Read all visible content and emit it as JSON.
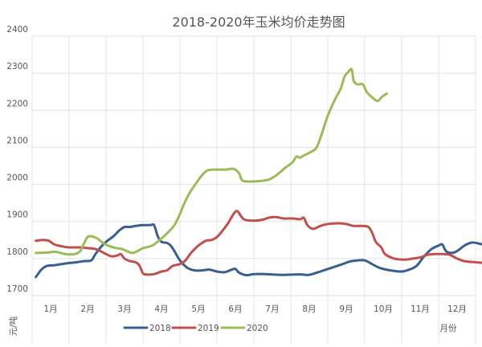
{
  "chart_data": {
    "type": "line",
    "title": "2018-2020年玉米均价走势图",
    "xlabel": "月份",
    "ylabel": "元/吨",
    "ylim": [
      1700,
      2400
    ],
    "yticks": [
      1700,
      1800,
      1900,
      2000,
      2100,
      2200,
      2300,
      2400
    ],
    "xlim": [
      0.5,
      12.5
    ],
    "categories": [
      "1月",
      "2月",
      "3月",
      "4月",
      "5月",
      "6月",
      "7月",
      "8月",
      "9月",
      "10月",
      "11月",
      "12月"
    ],
    "legend_position": "bottom-left",
    "grid": true,
    "series": [
      {
        "name": "2018",
        "color": "#3A5F8F",
        "points": [
          [
            0.6,
            1750
          ],
          [
            0.75,
            1770
          ],
          [
            0.9,
            1780
          ],
          [
            1.1,
            1782
          ],
          [
            1.3,
            1785
          ],
          [
            1.5,
            1788
          ],
          [
            1.7,
            1790
          ],
          [
            1.9,
            1793
          ],
          [
            2.1,
            1795
          ],
          [
            2.2,
            1810
          ],
          [
            2.35,
            1830
          ],
          [
            2.5,
            1845
          ],
          [
            2.7,
            1860
          ],
          [
            2.85,
            1875
          ],
          [
            3.0,
            1885
          ],
          [
            3.15,
            1885
          ],
          [
            3.3,
            1888
          ],
          [
            3.5,
            1890
          ],
          [
            3.7,
            1890
          ],
          [
            3.8,
            1890
          ],
          [
            3.9,
            1860
          ],
          [
            4.0,
            1845
          ],
          [
            4.15,
            1842
          ],
          [
            4.25,
            1835
          ],
          [
            4.35,
            1820
          ],
          [
            4.5,
            1795
          ],
          [
            4.7,
            1775
          ],
          [
            4.9,
            1768
          ],
          [
            5.1,
            1768
          ],
          [
            5.3,
            1770
          ],
          [
            5.5,
            1765
          ],
          [
            5.7,
            1763
          ],
          [
            5.9,
            1770
          ],
          [
            6.0,
            1772
          ],
          [
            6.1,
            1762
          ],
          [
            6.3,
            1755
          ],
          [
            6.5,
            1758
          ],
          [
            6.8,
            1758
          ],
          [
            7.0,
            1757
          ],
          [
            7.3,
            1756
          ],
          [
            7.6,
            1757
          ],
          [
            7.8,
            1757
          ],
          [
            8.0,
            1756
          ],
          [
            8.3,
            1765
          ],
          [
            8.6,
            1775
          ],
          [
            8.9,
            1785
          ],
          [
            9.1,
            1792
          ],
          [
            9.3,
            1795
          ],
          [
            9.5,
            1795
          ],
          [
            9.7,
            1785
          ],
          [
            9.9,
            1775
          ],
          [
            10.2,
            1768
          ],
          [
            10.5,
            1765
          ],
          [
            10.7,
            1770
          ],
          [
            10.9,
            1780
          ],
          [
            11.1,
            1805
          ],
          [
            11.3,
            1825
          ],
          [
            11.5,
            1835
          ],
          [
            11.6,
            1838
          ],
          [
            11.7,
            1820
          ],
          [
            11.85,
            1815
          ],
          [
            12.0,
            1820
          ],
          [
            12.2,
            1835
          ],
          [
            12.4,
            1843
          ],
          [
            12.6,
            1840
          ],
          [
            12.75,
            1835
          ],
          [
            12.85,
            1820
          ]
        ]
      },
      {
        "name": "2019",
        "color": "#C0504D",
        "points": [
          [
            0.6,
            1848
          ],
          [
            0.8,
            1850
          ],
          [
            0.95,
            1848
          ],
          [
            1.1,
            1838
          ],
          [
            1.3,
            1833
          ],
          [
            1.5,
            1830
          ],
          [
            1.8,
            1830
          ],
          [
            2.0,
            1828
          ],
          [
            2.2,
            1826
          ],
          [
            2.35,
            1820
          ],
          [
            2.5,
            1812
          ],
          [
            2.65,
            1806
          ],
          [
            2.8,
            1808
          ],
          [
            2.9,
            1812
          ],
          [
            3.0,
            1800
          ],
          [
            3.15,
            1793
          ],
          [
            3.3,
            1790
          ],
          [
            3.4,
            1782
          ],
          [
            3.5,
            1760
          ],
          [
            3.6,
            1757
          ],
          [
            3.8,
            1758
          ],
          [
            4.0,
            1765
          ],
          [
            4.15,
            1768
          ],
          [
            4.3,
            1780
          ],
          [
            4.5,
            1785
          ],
          [
            4.65,
            1795
          ],
          [
            4.8,
            1815
          ],
          [
            5.0,
            1835
          ],
          [
            5.2,
            1848
          ],
          [
            5.35,
            1850
          ],
          [
            5.5,
            1858
          ],
          [
            5.65,
            1875
          ],
          [
            5.8,
            1895
          ],
          [
            5.95,
            1920
          ],
          [
            6.05,
            1928
          ],
          [
            6.15,
            1915
          ],
          [
            6.25,
            1905
          ],
          [
            6.5,
            1902
          ],
          [
            6.75,
            1905
          ],
          [
            6.9,
            1910
          ],
          [
            7.1,
            1912
          ],
          [
            7.3,
            1908
          ],
          [
            7.55,
            1908
          ],
          [
            7.75,
            1906
          ],
          [
            7.85,
            1910
          ],
          [
            7.95,
            1890
          ],
          [
            8.1,
            1880
          ],
          [
            8.3,
            1888
          ],
          [
            8.5,
            1893
          ],
          [
            8.8,
            1895
          ],
          [
            9.0,
            1893
          ],
          [
            9.2,
            1888
          ],
          [
            9.45,
            1888
          ],
          [
            9.6,
            1885
          ],
          [
            9.7,
            1870
          ],
          [
            9.8,
            1845
          ],
          [
            9.95,
            1830
          ],
          [
            10.05,
            1812
          ],
          [
            10.3,
            1800
          ],
          [
            10.6,
            1797
          ],
          [
            10.8,
            1800
          ],
          [
            11.0,
            1803
          ],
          [
            11.2,
            1810
          ],
          [
            11.4,
            1812
          ],
          [
            11.6,
            1812
          ],
          [
            11.8,
            1810
          ],
          [
            12.0,
            1800
          ],
          [
            12.2,
            1793
          ],
          [
            12.5,
            1790
          ],
          [
            12.75,
            1788
          ]
        ]
      },
      {
        "name": "2020",
        "color": "#9BBB59",
        "points": [
          [
            0.6,
            1815
          ],
          [
            0.9,
            1816
          ],
          [
            1.15,
            1818
          ],
          [
            1.4,
            1812
          ],
          [
            1.65,
            1812
          ],
          [
            1.8,
            1820
          ],
          [
            1.9,
            1840
          ],
          [
            2.0,
            1858
          ],
          [
            2.1,
            1860
          ],
          [
            2.25,
            1855
          ],
          [
            2.45,
            1840
          ],
          [
            2.7,
            1830
          ],
          [
            2.95,
            1825
          ],
          [
            3.2,
            1815
          ],
          [
            3.35,
            1820
          ],
          [
            3.5,
            1828
          ],
          [
            3.75,
            1835
          ],
          [
            3.95,
            1850
          ],
          [
            4.15,
            1868
          ],
          [
            4.35,
            1890
          ],
          [
            4.5,
            1920
          ],
          [
            4.6,
            1945
          ],
          [
            4.75,
            1975
          ],
          [
            4.95,
            2005
          ],
          [
            5.1,
            2025
          ],
          [
            5.25,
            2038
          ],
          [
            5.5,
            2040
          ],
          [
            5.75,
            2040
          ],
          [
            5.95,
            2042
          ],
          [
            6.1,
            2030
          ],
          [
            6.2,
            2010
          ],
          [
            6.5,
            2008
          ],
          [
            6.75,
            2010
          ],
          [
            6.95,
            2015
          ],
          [
            7.15,
            2028
          ],
          [
            7.35,
            2045
          ],
          [
            7.55,
            2060
          ],
          [
            7.65,
            2075
          ],
          [
            7.75,
            2072
          ],
          [
            7.85,
            2078
          ],
          [
            8.05,
            2088
          ],
          [
            8.2,
            2100
          ],
          [
            8.35,
            2140
          ],
          [
            8.5,
            2185
          ],
          [
            8.7,
            2230
          ],
          [
            8.85,
            2258
          ],
          [
            8.95,
            2290
          ],
          [
            9.05,
            2303
          ],
          [
            9.15,
            2310
          ],
          [
            9.2,
            2280
          ],
          [
            9.3,
            2270
          ],
          [
            9.45,
            2270
          ],
          [
            9.55,
            2250
          ],
          [
            9.7,
            2235
          ],
          [
            9.85,
            2225
          ],
          [
            9.95,
            2235
          ],
          [
            10.05,
            2242
          ],
          [
            10.1,
            2245
          ]
        ]
      }
    ]
  }
}
